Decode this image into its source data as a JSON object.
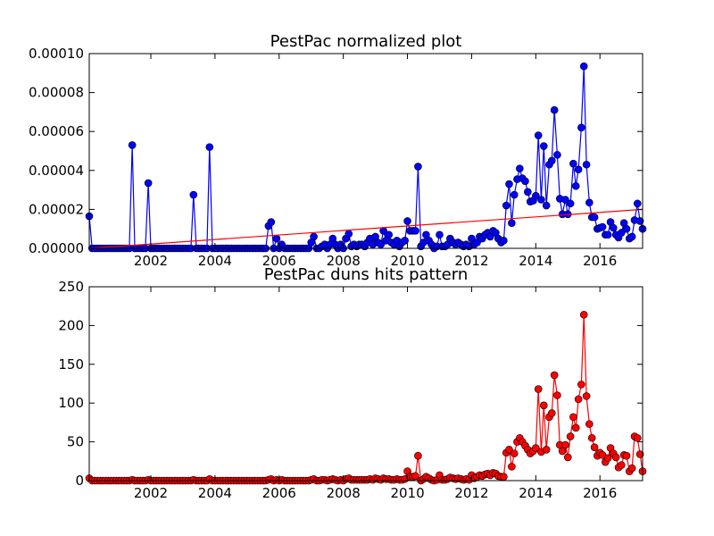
{
  "chart_data": [
    {
      "type": "line",
      "title": "PestPac normalized plot",
      "xlim": [
        2000.08,
        2017.33
      ],
      "xticks": [
        2002,
        2004,
        2006,
        2008,
        2010,
        2012,
        2014,
        2016
      ],
      "ylim": [
        0,
        0.0001
      ],
      "yticks": [
        {
          "value": 0,
          "label": "0.00000"
        },
        {
          "value": 2e-05,
          "label": "0.00002"
        },
        {
          "value": 4e-05,
          "label": "0.00004"
        },
        {
          "value": 6e-05,
          "label": "0.00006"
        },
        {
          "value": 8e-05,
          "label": "0.00008"
        },
        {
          "value": 0.0001,
          "label": "0.00010"
        }
      ],
      "series": [
        {
          "color": "#0000ff",
          "marker": true,
          "x": [
            2000.08,
            2000.17,
            2000.25,
            2000.33,
            2000.42,
            2000.5,
            2000.58,
            2000.67,
            2000.75,
            2000.83,
            2000.92,
            2001.0,
            2001.08,
            2001.17,
            2001.25,
            2001.33,
            2001.42,
            2001.5,
            2001.58,
            2001.67,
            2001.75,
            2001.83,
            2001.92,
            2002.0,
            2002.08,
            2002.17,
            2002.25,
            2002.33,
            2002.42,
            2002.5,
            2002.58,
            2002.67,
            2002.75,
            2002.83,
            2002.92,
            2003.0,
            2003.08,
            2003.17,
            2003.25,
            2003.33,
            2003.42,
            2003.5,
            2003.58,
            2003.67,
            2003.75,
            2003.83,
            2003.92,
            2004.0,
            2004.08,
            2004.17,
            2004.25,
            2004.33,
            2004.42,
            2004.5,
            2004.58,
            2004.67,
            2004.75,
            2004.83,
            2004.92,
            2005.0,
            2005.08,
            2005.17,
            2005.25,
            2005.33,
            2005.42,
            2005.5,
            2005.58,
            2005.67,
            2005.75,
            2005.83,
            2005.92,
            2006.0,
            2006.08,
            2006.17,
            2006.25,
            2006.33,
            2006.42,
            2006.5,
            2006.58,
            2006.67,
            2006.75,
            2006.83,
            2006.92,
            2007.0,
            2007.08,
            2007.17,
            2007.25,
            2007.33,
            2007.42,
            2007.5,
            2007.58,
            2007.67,
            2007.75,
            2007.83,
            2007.92,
            2008.0,
            2008.08,
            2008.17,
            2008.25,
            2008.33,
            2008.42,
            2008.5,
            2008.58,
            2008.67,
            2008.75,
            2008.83,
            2008.92,
            2009.0,
            2009.08,
            2009.17,
            2009.25,
            2009.33,
            2009.42,
            2009.5,
            2009.58,
            2009.67,
            2009.75,
            2009.83,
            2009.92,
            2010.0,
            2010.08,
            2010.17,
            2010.25,
            2010.33,
            2010.42,
            2010.5,
            2010.58,
            2010.67,
            2010.75,
            2010.83,
            2010.92,
            2011.0,
            2011.08,
            2011.17,
            2011.25,
            2011.33,
            2011.42,
            2011.5,
            2011.58,
            2011.67,
            2011.75,
            2011.83,
            2011.92,
            2012.0,
            2012.08,
            2012.17,
            2012.25,
            2012.33,
            2012.42,
            2012.5,
            2012.58,
            2012.67,
            2012.75,
            2012.83,
            2012.92,
            2013.0,
            2013.08,
            2013.17,
            2013.25,
            2013.33,
            2013.42,
            2013.5,
            2013.58,
            2013.67,
            2013.75,
            2013.83,
            2013.92,
            2014.0,
            2014.08,
            2014.17,
            2014.25,
            2014.33,
            2014.42,
            2014.5,
            2014.58,
            2014.67,
            2014.75,
            2014.83,
            2014.92,
            2015.0,
            2015.08,
            2015.17,
            2015.25,
            2015.33,
            2015.42,
            2015.5,
            2015.58,
            2015.67,
            2015.75,
            2015.83,
            2015.92,
            2016.0,
            2016.08,
            2016.17,
            2016.25,
            2016.33,
            2016.42,
            2016.5,
            2016.58,
            2016.67,
            2016.75,
            2016.83,
            2016.92,
            2017.0,
            2017.08,
            2017.17,
            2017.25,
            2017.33
          ],
          "values": [
            1.65e-05,
            0,
            0,
            0,
            0,
            0,
            0,
            0,
            0,
            0,
            0,
            0,
            0,
            0,
            0,
            0,
            5.3e-05,
            0,
            0,
            0,
            0,
            0,
            3.35e-05,
            0,
            0,
            0,
            0,
            0,
            0,
            0,
            0,
            0,
            0,
            0,
            0,
            0,
            0,
            0,
            0,
            2.75e-05,
            0,
            0,
            0,
            0,
            0,
            5.2e-05,
            0,
            0,
            0,
            0,
            0,
            0,
            0,
            0,
            0,
            0,
            0,
            0,
            0,
            0,
            0,
            0,
            0,
            0,
            0,
            0,
            0,
            1.15e-05,
            1.35e-05,
            0,
            5e-06,
            0,
            2e-06,
            0,
            0,
            0,
            0,
            0,
            0,
            0,
            0,
            0,
            0,
            3e-06,
            6e-06,
            0,
            0,
            1e-06,
            2e-06,
            0,
            2e-06,
            5e-06,
            2e-06,
            0,
            2e-06,
            0,
            5e-06,
            7.5e-06,
            1e-06,
            2e-06,
            1e-06,
            2e-06,
            2e-06,
            1e-06,
            3e-06,
            5e-06,
            2e-06,
            6e-06,
            3e-06,
            2e-06,
            9e-06,
            4e-06,
            7e-06,
            3e-06,
            2e-06,
            4e-06,
            1e-06,
            3e-06,
            4e-06,
            1.4e-05,
            9e-06,
            9e-06,
            9e-06,
            4.2e-05,
            1e-06,
            3e-06,
            7e-06,
            4e-06,
            2e-06,
            0,
            1e-06,
            7e-06,
            1e-06,
            1e-06,
            2e-06,
            5e-06,
            3e-06,
            2e-06,
            3e-06,
            2e-06,
            1e-06,
            2e-06,
            1e-06,
            5e-06,
            2e-06,
            3e-06,
            6e-06,
            5e-06,
            7e-06,
            8e-06,
            6e-06,
            9e-06,
            8e-06,
            5e-06,
            3e-06,
            4e-06,
            2.2e-05,
            3.3e-05,
            1.3e-05,
            2.75e-05,
            3.55e-05,
            4.1e-05,
            3.6e-05,
            3.45e-05,
            2.9e-05,
            2.4e-05,
            2.45e-05,
            2.7e-05,
            5.8e-05,
            2.5e-05,
            5.25e-05,
            2.2e-05,
            4.3e-05,
            4.5e-05,
            7.1e-05,
            4.8e-05,
            2.55e-05,
            1.75e-05,
            2.5e-05,
            1.75e-05,
            2.3e-05,
            4.35e-05,
            3.2e-05,
            4.05e-05,
            6.2e-05,
            9.35e-05,
            4.3e-05,
            2.35e-05,
            1.6e-05,
            1.6e-05,
            1e-05,
            1.05e-05,
            1.1e-05,
            7e-06,
            7e-06,
            1.35e-05,
            1.05e-05,
            7e-06,
            5.5e-06,
            8e-06,
            1.3e-05,
            1e-05,
            5e-06,
            6e-06,
            1.45e-05,
            2.3e-05,
            1.4e-05,
            1e-05
          ]
        },
        {
          "color": "#ff0000",
          "marker": false,
          "x": [
            2000.08,
            2017.33
          ],
          "values": [
            0,
            2e-05
          ]
        }
      ]
    },
    {
      "type": "line",
      "title": "PestPac duns hits pattern",
      "xlim": [
        2000.08,
        2017.33
      ],
      "xticks": [
        2002,
        2004,
        2006,
        2008,
        2010,
        2012,
        2014,
        2016
      ],
      "ylim": [
        0,
        250
      ],
      "yticks": [
        0,
        50,
        100,
        150,
        200,
        250
      ],
      "series": [
        {
          "color": "#ff0000",
          "marker": true,
          "x": [
            2000.08,
            2000.17,
            2000.25,
            2000.33,
            2000.42,
            2000.5,
            2000.58,
            2000.67,
            2000.75,
            2000.83,
            2000.92,
            2001.0,
            2001.08,
            2001.17,
            2001.25,
            2001.33,
            2001.42,
            2001.5,
            2001.58,
            2001.67,
            2001.75,
            2001.83,
            2001.92,
            2002.0,
            2002.08,
            2002.17,
            2002.25,
            2002.33,
            2002.42,
            2002.5,
            2002.58,
            2002.67,
            2002.75,
            2002.83,
            2002.92,
            2003.0,
            2003.08,
            2003.17,
            2003.25,
            2003.33,
            2003.42,
            2003.5,
            2003.58,
            2003.67,
            2003.75,
            2003.83,
            2003.92,
            2004.0,
            2004.08,
            2004.17,
            2004.25,
            2004.33,
            2004.42,
            2004.5,
            2004.58,
            2004.67,
            2004.75,
            2004.83,
            2004.92,
            2005.0,
            2005.08,
            2005.17,
            2005.25,
            2005.33,
            2005.42,
            2005.5,
            2005.58,
            2005.67,
            2005.75,
            2005.83,
            2005.92,
            2006.0,
            2006.08,
            2006.17,
            2006.25,
            2006.33,
            2006.42,
            2006.5,
            2006.58,
            2006.67,
            2006.75,
            2006.83,
            2006.92,
            2007.0,
            2007.08,
            2007.17,
            2007.25,
            2007.33,
            2007.42,
            2007.5,
            2007.58,
            2007.67,
            2007.75,
            2007.83,
            2007.92,
            2008.0,
            2008.08,
            2008.17,
            2008.25,
            2008.33,
            2008.42,
            2008.5,
            2008.58,
            2008.67,
            2008.75,
            2008.83,
            2008.92,
            2009.0,
            2009.08,
            2009.17,
            2009.25,
            2009.33,
            2009.42,
            2009.5,
            2009.58,
            2009.67,
            2009.75,
            2009.83,
            2009.92,
            2010.0,
            2010.08,
            2010.17,
            2010.25,
            2010.33,
            2010.42,
            2010.5,
            2010.58,
            2010.67,
            2010.75,
            2010.83,
            2010.92,
            2011.0,
            2011.08,
            2011.17,
            2011.25,
            2011.33,
            2011.42,
            2011.5,
            2011.58,
            2011.67,
            2011.75,
            2011.83,
            2011.92,
            2012.0,
            2012.08,
            2012.17,
            2012.25,
            2012.33,
            2012.42,
            2012.5,
            2012.58,
            2012.67,
            2012.75,
            2012.83,
            2012.92,
            2013.0,
            2013.08,
            2013.17,
            2013.25,
            2013.33,
            2013.42,
            2013.5,
            2013.58,
            2013.67,
            2013.75,
            2013.83,
            2013.92,
            2014.0,
            2014.08,
            2014.17,
            2014.25,
            2014.33,
            2014.42,
            2014.5,
            2014.58,
            2014.67,
            2014.75,
            2014.83,
            2014.92,
            2015.0,
            2015.08,
            2015.17,
            2015.25,
            2015.33,
            2015.42,
            2015.5,
            2015.58,
            2015.67,
            2015.75,
            2015.83,
            2015.92,
            2016.0,
            2016.08,
            2016.17,
            2016.25,
            2016.33,
            2016.42,
            2016.5,
            2016.58,
            2016.67,
            2016.75,
            2016.83,
            2016.92,
            2017.0,
            2017.08,
            2017.17,
            2017.25,
            2017.33
          ],
          "values": [
            3,
            0,
            0,
            0,
            0,
            0,
            0,
            0,
            0,
            0,
            0,
            0,
            0,
            0,
            0,
            0,
            1,
            0,
            0,
            0,
            0,
            0,
            1,
            0,
            0,
            0,
            0,
            0,
            0,
            0,
            0,
            0,
            0,
            0,
            0,
            0,
            0,
            0,
            0,
            1,
            0,
            0,
            0,
            0,
            0,
            2,
            0,
            0,
            0,
            0,
            0,
            0,
            0,
            0,
            0,
            0,
            0,
            0,
            0,
            0,
            0,
            0,
            0,
            0,
            0,
            0,
            0,
            1,
            2,
            0,
            1,
            0,
            1,
            0,
            0,
            0,
            0,
            0,
            0,
            0,
            0,
            0,
            0,
            1,
            2,
            0,
            0,
            1,
            1,
            0,
            1,
            2,
            1,
            0,
            1,
            0,
            2,
            3,
            1,
            1,
            1,
            1,
            1,
            1,
            1,
            2,
            1,
            3,
            2,
            1,
            3,
            2,
            2,
            1,
            1,
            2,
            1,
            1,
            2,
            12,
            5,
            5,
            6,
            32,
            0,
            2,
            5,
            3,
            1,
            0,
            1,
            7,
            1,
            1,
            2,
            4,
            3,
            2,
            3,
            2,
            1,
            2,
            1,
            7,
            3,
            5,
            7,
            6,
            8,
            9,
            7,
            10,
            9,
            6,
            5,
            5,
            36,
            40,
            18,
            35,
            50,
            55,
            50,
            45,
            40,
            35,
            38,
            42,
            118,
            37,
            97,
            40,
            82,
            87,
            136,
            110,
            46,
            38,
            46,
            30,
            57,
            82,
            68,
            105,
            124,
            214,
            109,
            73,
            55,
            43,
            32,
            36,
            33,
            24,
            29,
            42,
            35,
            30,
            17,
            20,
            33,
            32,
            12,
            16,
            57,
            55,
            34,
            12
          ]
        }
      ]
    }
  ]
}
